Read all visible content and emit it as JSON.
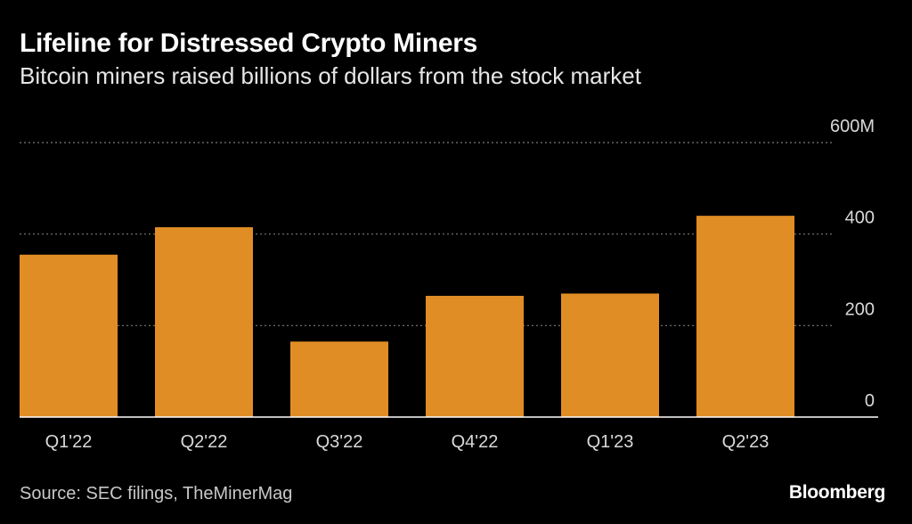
{
  "title": "Lifeline for Distressed Crypto Miners",
  "subtitle": "Bitcoin miners raised billions of dollars from the stock market",
  "source": "Source: SEC filings, TheMinerMag",
  "brand": "Bloomberg",
  "colors": {
    "background": "#000000",
    "bar": "#e08d25",
    "grid": "#7a7a7a",
    "axis": "#ffffff",
    "tick_text": "#d9d9d9"
  },
  "chart_data": {
    "type": "bar",
    "title": "Lifeline for Distressed Crypto Miners",
    "subtitle": "Bitcoin miners raised billions of dollars from the stock market",
    "categories": [
      "Q1'22",
      "Q2'22",
      "Q3'22",
      "Q4'22",
      "Q1'23",
      "Q2'23"
    ],
    "values": [
      355,
      415,
      165,
      265,
      270,
      440
    ],
    "ylim": [
      0,
      600
    ],
    "yticks": [
      0,
      200,
      400,
      600
    ],
    "ytick_labels": [
      "0",
      "200",
      "400",
      "600M"
    ],
    "xlabel": "",
    "ylabel": "",
    "grid": true,
    "y_axis_position": "right"
  }
}
